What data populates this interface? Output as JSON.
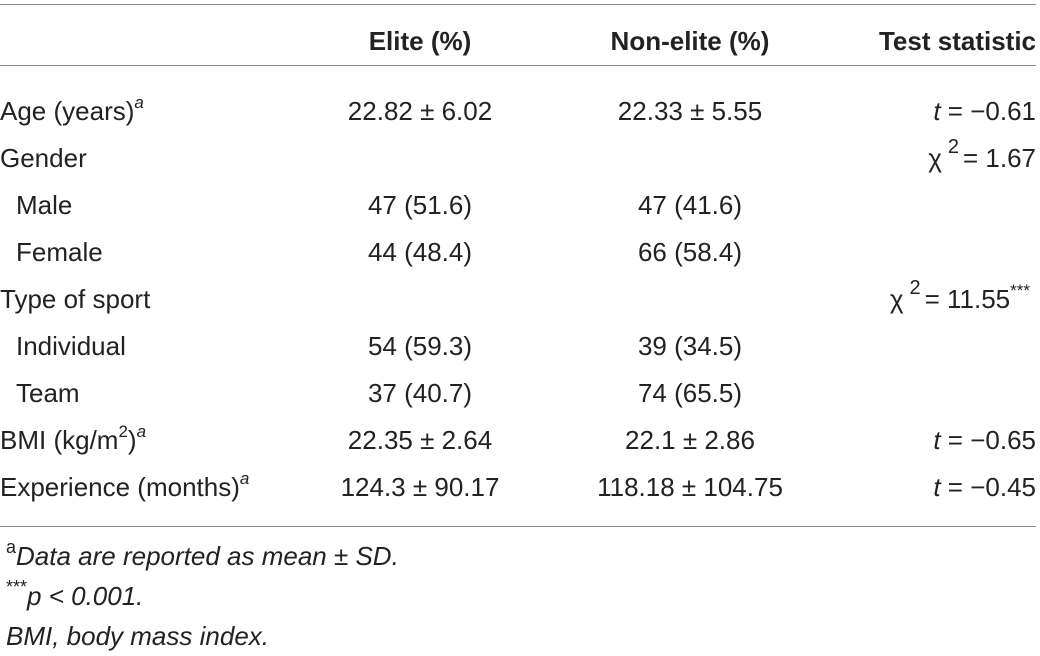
{
  "header": {
    "col0": "",
    "col1": "Elite (%)",
    "col2": "Non-elite (%)",
    "col3": "Test statistic"
  },
  "rows": [
    {
      "label": "Age (years)",
      "sup": "a",
      "elite": "22.82 ± 6.02",
      "nonelite": "22.33 ± 5.55",
      "stat_symbol": "t",
      "stat_value": " = −0.61"
    },
    {
      "label": "Gender",
      "elite": "",
      "nonelite": "",
      "stat_symbol": "χ",
      "stat_sup": "2",
      "stat_value": "= 1.67"
    },
    {
      "label": "Male",
      "elite": "47 (51.6)",
      "nonelite": "47 (41.6)"
    },
    {
      "label": "Female",
      "elite": "44 (48.4)",
      "nonelite": "66 (58.4)"
    },
    {
      "label": "Type of sport",
      "elite": "",
      "nonelite": "",
      "stat_symbol": "χ",
      "stat_sup": "2",
      "stat_value": "= 11.55",
      "stat_stars": "***"
    },
    {
      "label": "Individual",
      "elite": "54 (59.3)",
      "nonelite": "39 (34.5)"
    },
    {
      "label": "Team",
      "elite": "37 (40.7)",
      "nonelite": "74 (65.5)"
    },
    {
      "label_pre": "BMI (kg/m",
      "label_sup": "2",
      "label_post": ")",
      "sup": "a",
      "elite": "22.35 ± 2.64",
      "nonelite": "22.1 ± 2.86",
      "stat_symbol": "t",
      "stat_value": " = −0.65"
    },
    {
      "label": "Experience (months)",
      "sup": "a",
      "elite": "124.3 ± 90.17",
      "nonelite": "118.18 ± 104.75",
      "stat_symbol": "t",
      "stat_value": " = −0.45"
    }
  ],
  "notes": {
    "note_a_marker": "a",
    "note_a": "Data are reported as mean ± SD.",
    "note_p_marker": "***",
    "note_p": "p < 0.001.",
    "note_bmi": "BMI, body mass index."
  }
}
